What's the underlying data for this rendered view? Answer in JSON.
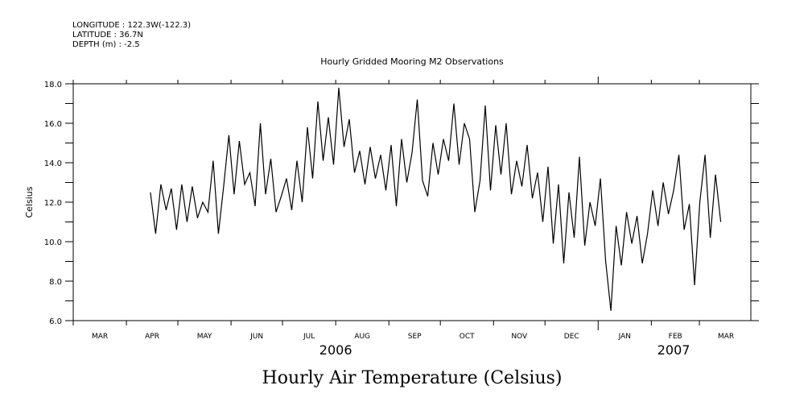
{
  "header": {
    "longitude": "LONGITUDE : 122.3W(-122.3)",
    "latitude": "LATITUDE : 36.7N",
    "depth": "DEPTH (m) : -2.5"
  },
  "chart_data": {
    "type": "line",
    "title": "Hourly Gridded Mooring M2 Observations",
    "bottom_title": "Hourly Air Temperature (Celsius)",
    "xlabel": "",
    "ylabel": "Celsius",
    "ylim": [
      6.0,
      18.0
    ],
    "yticks": [
      "6.0",
      "8.0",
      "10.0",
      "12.0",
      "14.0",
      "16.0",
      "18.0"
    ],
    "x_range_days_since_2006_03_01": [
      0,
      395
    ],
    "month_labels": [
      "MAR",
      "APR",
      "MAY",
      "JUN",
      "JUL",
      "AUG",
      "SEP",
      "OCT",
      "NOV",
      "DEC",
      "JAN",
      "FEB",
      "MAR"
    ],
    "month_start_days": [
      0,
      31,
      61,
      92,
      122,
      153,
      184,
      214,
      245,
      275,
      306,
      337,
      365,
      396
    ],
    "year_labels": [
      {
        "label": "2006",
        "day": 153
      },
      {
        "label": "2007",
        "day": 350
      }
    ],
    "series": [
      {
        "name": "Air Temperature",
        "start_day": 45,
        "step_days": 3.05,
        "values": [
          12.5,
          10.4,
          12.9,
          11.6,
          12.7,
          10.6,
          12.9,
          11.0,
          12.8,
          11.2,
          12.0,
          11.5,
          14.1,
          10.4,
          12.8,
          15.4,
          12.4,
          15.1,
          12.9,
          13.5,
          11.8,
          16.0,
          12.4,
          14.2,
          11.5,
          12.3,
          13.2,
          11.6,
          14.1,
          12.0,
          15.8,
          13.2,
          17.1,
          14.1,
          16.3,
          13.9,
          17.8,
          14.8,
          16.2,
          13.5,
          14.6,
          12.9,
          14.8,
          13.2,
          14.4,
          12.6,
          14.9,
          11.8,
          15.2,
          13.0,
          14.5,
          17.2,
          13.1,
          12.3,
          15.0,
          13.4,
          15.2,
          14.1,
          17.0,
          13.9,
          16.0,
          15.2,
          11.5,
          13.1,
          16.9,
          12.6,
          15.9,
          13.4,
          16.0,
          12.4,
          14.1,
          12.8,
          14.9,
          12.2,
          13.5,
          11.0,
          13.8,
          9.9,
          12.9,
          8.9,
          12.5,
          10.2,
          14.3,
          9.8,
          12.0,
          10.8,
          13.2,
          9.0,
          6.5,
          10.8,
          8.8,
          11.5,
          9.9,
          11.3,
          8.9,
          10.4,
          12.6,
          10.8,
          13.0,
          11.4,
          12.6,
          14.4,
          10.6,
          11.9,
          7.8,
          12.0,
          14.4,
          10.2,
          13.4,
          11.0
        ]
      }
    ]
  }
}
